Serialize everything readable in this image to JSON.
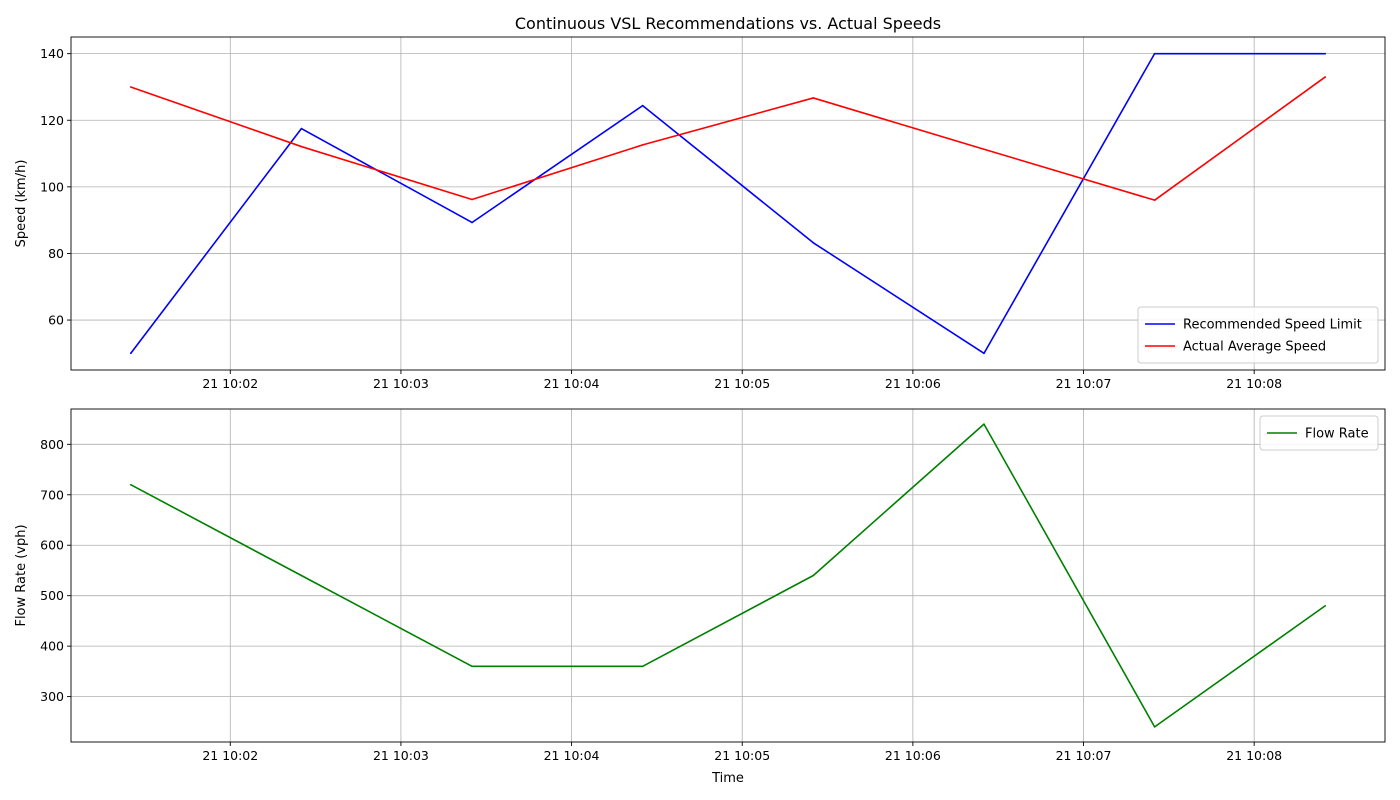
{
  "chart_data": [
    {
      "type": "line",
      "title": "Continuous VSL Recommendations vs. Actual Speeds",
      "xlabel": "",
      "ylabel": "Speed (km/h)",
      "x": [
        "10:01:25",
        "10:02:25",
        "10:03:25",
        "10:04:25",
        "10:05:25",
        "10:06:25",
        "10:07:25",
        "10:08:25"
      ],
      "xlim": [
        "10:01:04",
        "10:08:46"
      ],
      "ylim": [
        45,
        145
      ],
      "xticks": [
        "21 10:02",
        "21 10:03",
        "21 10:04",
        "21 10:05",
        "21 10:06",
        "21 10:07",
        "21 10:08"
      ],
      "yticks": [
        60,
        80,
        100,
        120,
        140
      ],
      "grid": true,
      "legend_position": "lower-right",
      "series": [
        {
          "name": "Recommended Speed Limit",
          "color": "#0000ff",
          "values": [
            50,
            117.5,
            89.3,
            124.4,
            83.2,
            50,
            140,
            140
          ]
        },
        {
          "name": "Actual Average Speed",
          "color": "#ff0000",
          "values": [
            130,
            112.1,
            96.2,
            112.6,
            126.7,
            111.3,
            96,
            133
          ]
        }
      ]
    },
    {
      "type": "line",
      "title": "",
      "xlabel": "Time",
      "ylabel": "Flow Rate (vph)",
      "x": [
        "10:01:25",
        "10:02:25",
        "10:03:25",
        "10:04:25",
        "10:05:25",
        "10:06:25",
        "10:07:25",
        "10:08:25"
      ],
      "xlim": [
        "10:01:04",
        "10:08:46"
      ],
      "ylim": [
        210,
        870
      ],
      "xticks": [
        "21 10:02",
        "21 10:03",
        "21 10:04",
        "21 10:05",
        "21 10:06",
        "21 10:07",
        "21 10:08"
      ],
      "yticks": [
        300,
        400,
        500,
        600,
        700,
        800
      ],
      "grid": true,
      "legend_position": "upper-right",
      "series": [
        {
          "name": "Flow Rate",
          "color": "#008000",
          "values": [
            720,
            540,
            360,
            360,
            540,
            840,
            240,
            480
          ]
        }
      ]
    }
  ]
}
